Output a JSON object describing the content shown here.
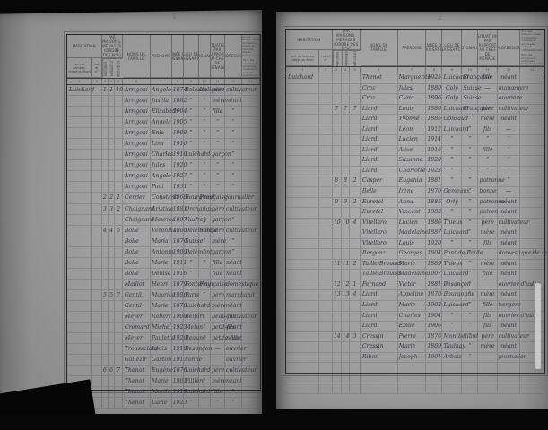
{
  "scan": {
    "background_color": "#080808",
    "paper_color_left": "#9a9a9a",
    "paper_color_right": "#a3a3a3",
    "ink_color": "#33333d",
    "print_color": "#3b3b3b"
  },
  "table_header": {
    "habitation": {
      "label": "HABITATION",
      "sub1": "nom du hameau, village ou écart",
      "sub2": "rue et n°"
    },
    "numeros": {
      "label": "NUMÉROS",
      "caption": "par maisons, ménages (ordre des n°s)",
      "subs": [
        "Maisons",
        "Ménages",
        "Individus"
      ]
    },
    "noms": "NOMS de famille",
    "prenoms": "PRÉNOMS",
    "annee": "ANNÉE de naissance",
    "lieu": "LIEU de naissance",
    "nationalite": "NATIONALITÉ",
    "situation": "SITUATION par rapport au chef de ménage",
    "profession": "PROFESSION",
    "observations_1": "Pour les patrons, chefs d'entreprise, ouvriers et employés, indiquer l'établissement.",
    "observations_2": "Pour les ouvriers et employés, indiquer le nom du patron ou de l'entreprise qui les emploie.",
    "col_numbers": [
      "1",
      "2",
      "3",
      "4",
      "5",
      "6",
      "7",
      "8",
      "9",
      "10",
      "11",
      "12",
      "13"
    ]
  },
  "row_fields": [
    "habitation",
    "rue",
    "no-maison",
    "no-menage",
    "no-individu",
    "nom",
    "prenom",
    "annee-naissance",
    "lieu-naissance",
    "nationalite",
    "situation",
    "profession",
    "observation"
  ],
  "pages": [
    {
      "page_number": "1",
      "rows": [
        [
          "Luichard",
          "",
          "1",
          "1",
          "10",
          "Arrigoni",
          "Angelo",
          "1874",
          "Bolezzo",
          "Italienne",
          "père",
          "cultivateur",
          ""
        ],
        [
          "",
          "",
          "",
          "",
          "",
          "Arrigoni",
          "Juséla",
          "1882",
          "”",
          "”",
          "mère",
          "néant",
          ""
        ],
        [
          "",
          "",
          "",
          "",
          "",
          "Arrigoni",
          "Elisabeth",
          "1904",
          "”",
          "”",
          "fille",
          "”",
          ""
        ],
        [
          "",
          "",
          "",
          "",
          "",
          "Arrigoni",
          "Angela",
          "1905",
          "”",
          "”",
          "”",
          "”",
          ""
        ],
        [
          "",
          "",
          "",
          "",
          "",
          "Arrigoni",
          "Enis",
          "1908",
          "”",
          "”",
          "”",
          "”",
          ""
        ],
        [
          "",
          "",
          "",
          "",
          "",
          "Arrigoni",
          "Lina",
          "1910",
          "”",
          "”",
          "”",
          "”",
          ""
        ],
        [
          "",
          "",
          "",
          "",
          "",
          "Arrigoni",
          "Charles",
          "1916",
          "Luichard",
          "”",
          "garçon",
          "”",
          ""
        ],
        [
          "",
          "",
          "",
          "",
          "",
          "Arrigoni",
          "Jules",
          "1920",
          "”",
          "”",
          "”",
          "”",
          ""
        ],
        [
          "",
          "",
          "",
          "",
          "",
          "Arrigoni",
          "Angelo",
          "1927",
          "”",
          "”",
          "”",
          "”",
          ""
        ],
        [
          "",
          "",
          "",
          "",
          "",
          "Arrigoni",
          "Paul",
          "1931",
          "”",
          "”",
          "”",
          "”",
          ""
        ],
        [
          "",
          "",
          "2",
          "2",
          "1",
          "Cerrier",
          "Constant",
          "1868",
          "Bourgneuf",
          "Française",
          "",
          "journalier",
          ""
        ],
        [
          "",
          "",
          "3",
          "3",
          "2",
          "Choignard",
          "Aristide",
          "1881",
          "Orchamps",
          "”",
          "père",
          "cultivateur",
          ""
        ],
        [
          "",
          "",
          "",
          "",
          "",
          "Choignard",
          "Maurice",
          "1887",
          "Vaufrey",
          "”",
          "garçon",
          "”",
          ""
        ],
        [
          "",
          "",
          "4",
          "4",
          "6",
          "Bolle",
          "Véronika",
          "1866",
          "Delémont",
          "Suisse",
          "père",
          "cultivateur",
          ""
        ],
        [
          "",
          "",
          "",
          "",
          "",
          "Bolle",
          "Maria",
          "1876",
          "Suisse",
          "”",
          "mère",
          "”",
          ""
        ],
        [
          "",
          "",
          "",
          "",
          "",
          "Bolle",
          "Antonin",
          "1908",
          "Delémont",
          "”",
          "garçon",
          "”",
          ""
        ],
        [
          "",
          "",
          "",
          "",
          "",
          "Bolle",
          "Marie",
          "1911",
          "”",
          "”",
          "fille",
          "néant",
          ""
        ],
        [
          "",
          "",
          "",
          "",
          "",
          "Bolle",
          "Denise",
          "1916",
          "”",
          "”",
          "fille",
          "néant",
          ""
        ],
        [
          "",
          "",
          "",
          "",
          "",
          "Maillot",
          "Henri",
          "1879",
          "Fontenay",
          "Française",
          "",
          "domestique de culture",
          "∕"
        ],
        [
          "",
          "",
          "5",
          "5",
          "7",
          "Gentil",
          "Maurice",
          "1886",
          "Paris",
          "”",
          "père",
          "marchand",
          ""
        ],
        [
          "",
          "",
          "",
          "",
          "",
          "Gentil",
          "Marie",
          "1878",
          "Luichard",
          "”",
          "mère",
          "néant",
          ""
        ],
        [
          "",
          "",
          "",
          "",
          "",
          "Meyer",
          "Robert",
          "1908",
          "Belfort",
          "”",
          "beau-fils",
          "cultivateur",
          ""
        ],
        [
          "",
          "",
          "",
          "",
          "",
          "Cremard",
          "Michel",
          "1923",
          "Melun",
          "”",
          "petit-fils",
          "néant",
          ""
        ],
        [
          "",
          "",
          "",
          "",
          "",
          "Meyer",
          "Paulette",
          "1928",
          "Beaune",
          "”",
          "petite-fille",
          "néant",
          ""
        ],
        [
          "",
          "",
          "",
          "",
          "",
          "Trousselard",
          "Louis",
          "1919",
          "Besançon",
          "”",
          "—",
          "ouvrier",
          ""
        ],
        [
          "",
          "",
          "",
          "",
          "",
          "Gallezir",
          "Gaston",
          "1917",
          "Yonne",
          "”",
          "",
          "ouvrier",
          ""
        ],
        [
          "",
          "",
          "6",
          "6",
          "7",
          "Thenot",
          "Eugène",
          "1876",
          "Luichard",
          "”",
          "père",
          "cultivateur",
          ""
        ],
        [
          "",
          "",
          "",
          "",
          "",
          "Thenot",
          "Marie",
          "1881",
          "Fillière",
          "”",
          "mère",
          "néant",
          ""
        ],
        [
          "",
          "",
          "",
          "",
          "",
          "Thenot",
          "Marthe",
          "1912",
          "Luichard",
          "”",
          "fille",
          "”",
          ""
        ],
        [
          "",
          "",
          "",
          "",
          "",
          "Thenot",
          "Lucie",
          "1923",
          "”",
          "”",
          "”",
          "”",
          ""
        ]
      ]
    },
    {
      "page_number": "2",
      "rows": [
        [
          "Luichard",
          "",
          "",
          "",
          "",
          "Thenot",
          "Marguerite",
          "1925",
          "Luichard",
          "Française",
          "fille",
          "néant",
          ""
        ],
        [
          "",
          "",
          "",
          "",
          "",
          "Croz",
          "Jules",
          "1880",
          "Coly",
          "Suisse",
          "—",
          "manœuvre",
          ""
        ],
        [
          "",
          "",
          "",
          "",
          "",
          "Croz",
          "Clara",
          "1896",
          "Coly",
          "Suisse",
          "",
          "ouvrière",
          ""
        ],
        [
          "",
          "",
          "7",
          "7",
          "7",
          "Liard",
          "Louis",
          "1880",
          "Luichard",
          "Française",
          "père",
          "cultivateur",
          ""
        ],
        [
          "",
          "",
          "",
          "",
          "",
          "Liard",
          "Yvonne",
          "1885",
          "Gonsaud",
          "”",
          "mère",
          "néant",
          ""
        ],
        [
          "",
          "",
          "",
          "",
          "",
          "Liard",
          "Léon",
          "1912",
          "Luichard",
          "”",
          "fils",
          "—",
          ""
        ],
        [
          "",
          "",
          "",
          "",
          "",
          "Liard",
          "Lucien",
          "1914",
          "”",
          "”",
          "”",
          "”",
          ""
        ],
        [
          "",
          "",
          "",
          "",
          "",
          "Liard",
          "Alice",
          "1916",
          "”",
          "”",
          "fille",
          "”",
          ""
        ],
        [
          "",
          "",
          "",
          "",
          "",
          "Liard",
          "Suzanne",
          "1920",
          "”",
          "”",
          "”",
          "”",
          ""
        ],
        [
          "",
          "",
          "",
          "",
          "",
          "Liard",
          "Charlotte",
          "1923",
          "”",
          "”",
          "”",
          "”",
          ""
        ],
        [
          "",
          "",
          "8",
          "8",
          "2",
          "Casper",
          "Eugenia",
          "1881",
          "”",
          "”",
          "patronne",
          "”",
          ""
        ],
        [
          "",
          "",
          "",
          "",
          "",
          "Belle",
          "Irène",
          "1870",
          "Gemeaux",
          "”",
          "bonne",
          "—",
          ""
        ],
        [
          "",
          "",
          "9",
          "9",
          "2",
          "Euretel",
          "Anna",
          "1885",
          "Orly",
          "”",
          "patronne",
          "néant",
          ""
        ],
        [
          "",
          "",
          "",
          "",
          "",
          "Euretel",
          "Vincent",
          "1883",
          "”",
          "”",
          "patron",
          "néant",
          ""
        ],
        [
          "",
          "",
          "10",
          "10",
          "4",
          "Vitellaro",
          "Lucien",
          "1886",
          "Thieux",
          "”",
          "père",
          "cultivateur",
          ""
        ],
        [
          "",
          "",
          "",
          "",
          "",
          "Vitellaro",
          "Madelaine",
          "1887",
          "Luichard",
          "”",
          "mère",
          "néant",
          ""
        ],
        [
          "",
          "",
          "",
          "",
          "",
          "Vitellaro",
          "Louis",
          "1920",
          "”",
          "”",
          "fils",
          "néant",
          ""
        ],
        [
          "",
          "",
          "",
          "",
          "",
          "Bergonz",
          "Georges",
          "1904",
          "Pont-de-Roide",
          "”",
          "",
          "domestique de culture",
          "∕"
        ],
        [
          "",
          "",
          "11",
          "11",
          "2",
          "Taille-Braudel",
          "Marie",
          "1889",
          "Thieux",
          "”",
          "mère",
          "néant",
          ""
        ],
        [
          "",
          "",
          "",
          "",
          "",
          "Taille-Braudel",
          "Madelaine",
          "1907",
          "Luichard",
          "”",
          "fille",
          "néant",
          ""
        ],
        [
          "",
          "",
          "12",
          "12",
          "1",
          "Fernand",
          "Victor",
          "1881",
          "Besançon",
          "”",
          "",
          "ouvrier d'usine",
          "∕"
        ],
        [
          "",
          "",
          "13",
          "13",
          "4",
          "Liard",
          "Appoline",
          "1870",
          "Bourgogne",
          "”",
          "mère",
          "néant",
          ""
        ],
        [
          "",
          "",
          "",
          "",
          "",
          "Liard",
          "Marie",
          "1902",
          "Luichard",
          "”",
          "fille",
          "bergère",
          ""
        ],
        [
          "",
          "",
          "",
          "",
          "",
          "Liard",
          "Charles",
          "1904",
          "”",
          "”",
          "fils",
          "ouvrier d'usine",
          ""
        ],
        [
          "",
          "",
          "",
          "",
          "",
          "Liard",
          "Émile",
          "1906",
          "”",
          "”",
          "fils",
          "néant",
          ""
        ],
        [
          "",
          "",
          "14",
          "14",
          "3",
          "Cressin",
          "Pierre",
          "1876",
          "Montbéliard",
          "”",
          "père",
          "cultivateur",
          ""
        ],
        [
          "",
          "",
          "",
          "",
          "",
          "Cressin",
          "Marie",
          "1869",
          "Taulnay",
          "”",
          "mère",
          "néant",
          ""
        ],
        [
          "",
          "",
          "",
          "",
          "",
          "Ribon",
          "Joseph",
          "1901",
          "Arbois",
          "”",
          "",
          "journalier",
          ""
        ],
        [
          "",
          "",
          "",
          "",
          "",
          "",
          "",
          "",
          "",
          "",
          "",
          "",
          ""
        ],
        [
          "",
          "",
          "",
          "",
          "",
          "",
          "",
          "",
          "",
          "",
          "",
          "",
          ""
        ],
        [
          "",
          "",
          "",
          "",
          "",
          "",
          "",
          "",
          "",
          "",
          "",
          "",
          ""
        ]
      ]
    }
  ]
}
